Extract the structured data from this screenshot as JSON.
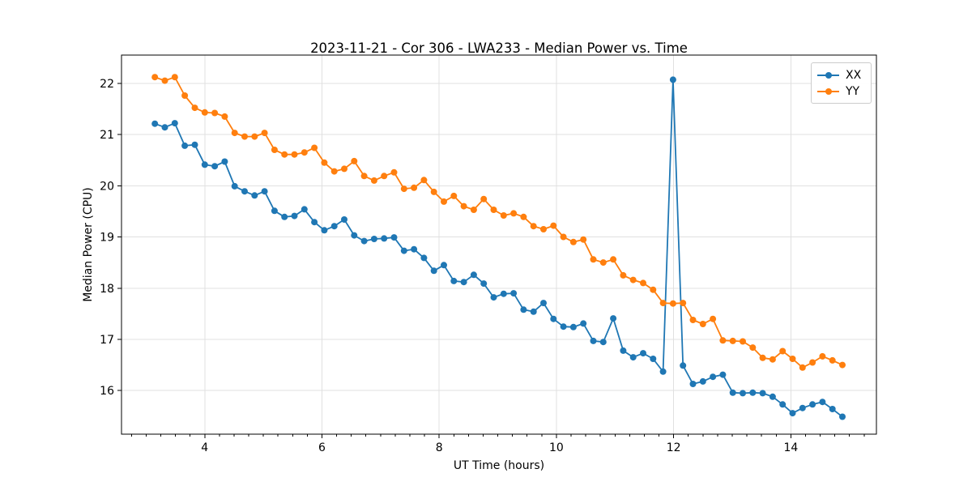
{
  "figure": {
    "title": "2023-11-21 - Cor 306 - LWA233 - Median Power vs. Time",
    "xlabel": "UT Time (hours)",
    "ylabel": "Median Power (CPU)"
  },
  "chart_data": {
    "type": "line",
    "title": "2023-11-21 - Cor 306 - LWA233 - Median Power vs. Time",
    "xlabel": "UT Time (hours)",
    "ylabel": "Median Power (CPU)",
    "xlim": [
      2.58,
      15.46
    ],
    "ylim": [
      15.15,
      22.55
    ],
    "xticks": [
      4,
      6,
      8,
      10,
      12,
      14
    ],
    "yticks": [
      16,
      17,
      18,
      19,
      20,
      21,
      22
    ],
    "minor_xtick_step": 0.25,
    "grid": true,
    "grid_color": "#e0e0e0",
    "legend_position": "upper right",
    "marker": "circle",
    "x": [
      3.15,
      3.32,
      3.49,
      3.66,
      3.83,
      4.0,
      4.17,
      4.34,
      4.51,
      4.68,
      4.85,
      5.02,
      5.19,
      5.36,
      5.53,
      5.7,
      5.87,
      6.04,
      6.21,
      6.38,
      6.55,
      6.72,
      6.89,
      7.06,
      7.23,
      7.4,
      7.57,
      7.74,
      7.91,
      8.08,
      8.25,
      8.42,
      8.59,
      8.76,
      8.93,
      9.1,
      9.27,
      9.44,
      9.61,
      9.78,
      9.95,
      10.12,
      10.29,
      10.46,
      10.63,
      10.8,
      10.97,
      11.14,
      11.31,
      11.48,
      11.65,
      11.82,
      11.99,
      12.16,
      12.33,
      12.5,
      12.67,
      12.84,
      13.01,
      13.18,
      13.35,
      13.52,
      13.69,
      13.86,
      14.03,
      14.2,
      14.37,
      14.54,
      14.71,
      14.88
    ],
    "series": [
      {
        "name": "XX",
        "color": "#1f77b4",
        "values": [
          21.21,
          21.14,
          21.22,
          20.78,
          20.8,
          20.41,
          20.38,
          20.47,
          19.99,
          19.89,
          19.81,
          19.89,
          19.51,
          19.39,
          19.41,
          19.54,
          19.29,
          19.13,
          19.21,
          19.34,
          19.03,
          18.92,
          18.96,
          18.97,
          18.99,
          18.73,
          18.76,
          18.59,
          18.34,
          18.45,
          18.14,
          18.12,
          18.26,
          18.09,
          17.82,
          17.89,
          17.9,
          17.58,
          17.54,
          17.71,
          17.4,
          17.25,
          17.24,
          17.31,
          16.97,
          16.95,
          17.41,
          16.78,
          16.65,
          16.73,
          16.62,
          16.37,
          22.07,
          16.49,
          16.13,
          16.18,
          16.27,
          16.31,
          15.96,
          15.95,
          15.96,
          15.95,
          15.88,
          15.73,
          15.56,
          15.66,
          15.73,
          15.78,
          15.64,
          15.49
        ]
      },
      {
        "name": "YY",
        "color": "#ff7f0e",
        "values": [
          22.12,
          22.05,
          22.12,
          21.76,
          21.52,
          21.43,
          21.42,
          21.35,
          21.03,
          20.96,
          20.96,
          21.03,
          20.7,
          20.61,
          20.61,
          20.65,
          20.74,
          20.45,
          20.28,
          20.33,
          20.48,
          20.19,
          20.1,
          20.19,
          20.26,
          19.94,
          19.96,
          20.11,
          19.88,
          19.69,
          19.8,
          19.6,
          19.53,
          19.74,
          19.53,
          19.42,
          19.46,
          19.39,
          19.21,
          19.15,
          19.22,
          19.0,
          18.9,
          18.95,
          18.56,
          18.5,
          18.56,
          18.25,
          18.16,
          18.1,
          17.97,
          17.71,
          17.7,
          17.71,
          17.38,
          17.3,
          17.4,
          16.98,
          16.97,
          16.96,
          16.84,
          16.64,
          16.61,
          16.77,
          16.62,
          16.45,
          16.55,
          16.67,
          16.59,
          16.5
        ]
      }
    ]
  },
  "legend": {
    "items": [
      {
        "label": "XX",
        "color": "#1f77b4"
      },
      {
        "label": "YY",
        "color": "#ff7f0e"
      }
    ]
  }
}
